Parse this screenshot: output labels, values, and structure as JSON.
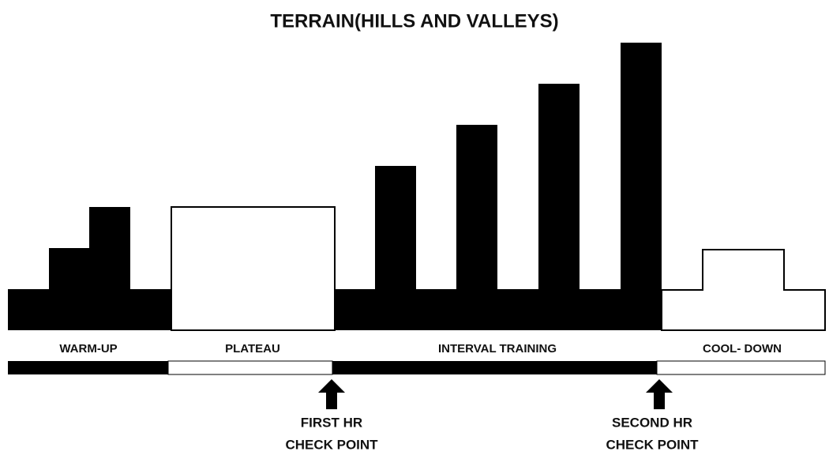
{
  "title": "TERRAIN(HILLS AND VALLEYS)",
  "phases": [
    "WARM-UP",
    "PLATEAU",
    "INTERVAL TRAINING",
    "COOL- DOWN"
  ],
  "checkpoints": [
    [
      "FIRST HR",
      "CHECK POINT"
    ],
    [
      "SECOND HR",
      "CHECK POINT"
    ]
  ]
}
